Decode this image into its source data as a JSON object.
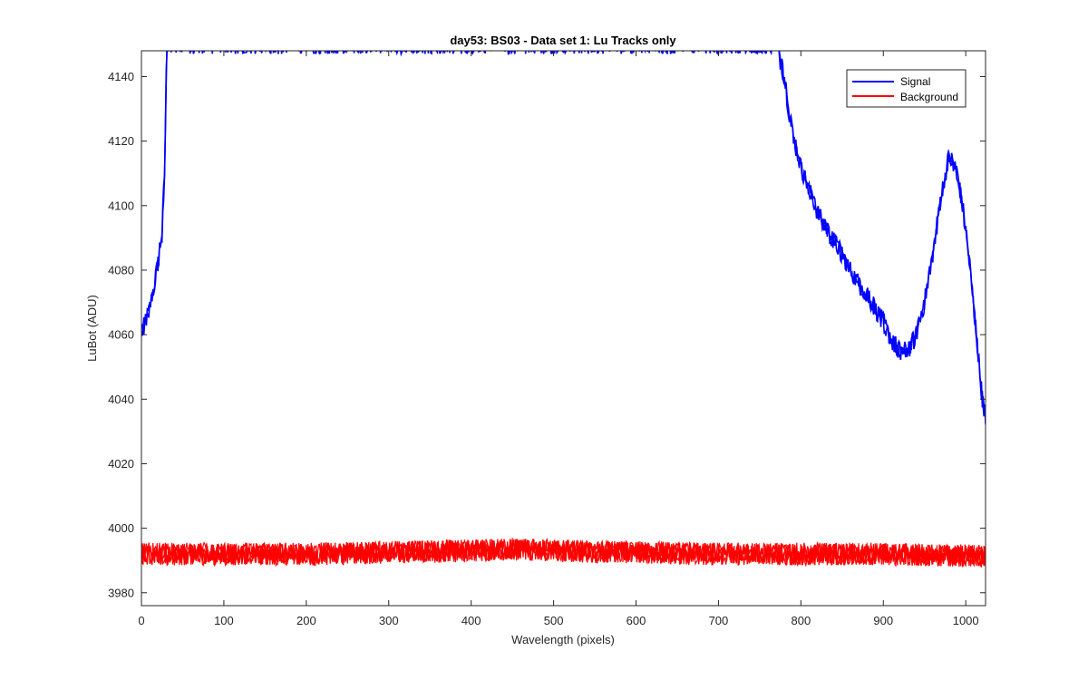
{
  "chart_data": {
    "type": "line",
    "title": "day53: BS03 - Data set 1: Lu Tracks only",
    "xlabel": "Wavelength (pixels)",
    "ylabel": "LuBot (ADU)",
    "xlim": [
      0,
      1024
    ],
    "ylim": [
      3976,
      4148
    ],
    "xticks": [
      "0",
      "100",
      "200",
      "300",
      "400",
      "500",
      "600",
      "700",
      "800",
      "900",
      "1000"
    ],
    "yticks": [
      "3980",
      "4000",
      "4020",
      "4040",
      "4060",
      "4080",
      "4100",
      "4120",
      "4140"
    ],
    "grid": false,
    "legend_position": "top-right",
    "series": [
      {
        "name": "Signal",
        "color": "#0000ff",
        "noise": 3,
        "points": [
          [
            0,
            4060
          ],
          [
            5,
            4064
          ],
          [
            10,
            4068
          ],
          [
            15,
            4075
          ],
          [
            20,
            4082
          ],
          [
            25,
            4092
          ],
          [
            28,
            4110
          ],
          [
            30,
            4140
          ],
          [
            31,
            4150
          ],
          [
            770,
            4150
          ],
          [
            775,
            4145
          ],
          [
            780,
            4140
          ],
          [
            785,
            4130
          ],
          [
            790,
            4122
          ],
          [
            800,
            4112
          ],
          [
            810,
            4105
          ],
          [
            820,
            4098
          ],
          [
            830,
            4093
          ],
          [
            840,
            4089
          ],
          [
            850,
            4085
          ],
          [
            860,
            4080
          ],
          [
            870,
            4076
          ],
          [
            880,
            4072
          ],
          [
            890,
            4068
          ],
          [
            900,
            4064
          ],
          [
            910,
            4058
          ],
          [
            920,
            4055
          ],
          [
            930,
            4055
          ],
          [
            940,
            4060
          ],
          [
            950,
            4070
          ],
          [
            960,
            4085
          ],
          [
            970,
            4103
          ],
          [
            980,
            4116
          ],
          [
            990,
            4110
          ],
          [
            1000,
            4093
          ],
          [
            1010,
            4068
          ],
          [
            1020,
            4040
          ],
          [
            1024,
            4035
          ]
        ]
      },
      {
        "name": "Background",
        "color": "#ff0000",
        "noise": 3.5,
        "points": [
          [
            0,
            3992
          ],
          [
            100,
            3992
          ],
          [
            200,
            3992
          ],
          [
            300,
            3992.5
          ],
          [
            400,
            3993
          ],
          [
            450,
            3993.5
          ],
          [
            500,
            3993
          ],
          [
            600,
            3992.5
          ],
          [
            700,
            3992
          ],
          [
            800,
            3992
          ],
          [
            900,
            3992
          ],
          [
            1000,
            3991.5
          ],
          [
            1024,
            3991.5
          ]
        ]
      }
    ]
  }
}
